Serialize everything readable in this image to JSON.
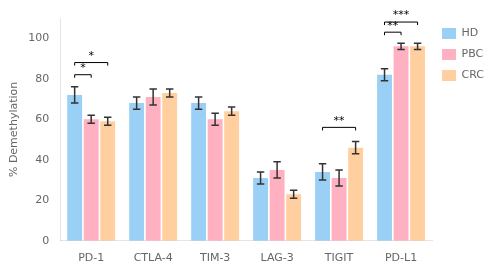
{
  "chart_data": {
    "type": "bar",
    "ylabel": "% Demethylation",
    "categories": [
      "PD-1",
      "CTLA-4",
      "TIM-3",
      "LAG-3",
      "TIGIT",
      "PD-L1"
    ],
    "series": [
      {
        "name": "HD",
        "values": [
          72,
          68,
          68,
          31,
          34,
          82
        ],
        "errors": [
          4,
          3,
          3,
          3,
          4,
          3
        ]
      },
      {
        "name": "PBC",
        "values": [
          60,
          71,
          60,
          35,
          31,
          96
        ],
        "errors": [
          2,
          4,
          3,
          4,
          4,
          1.5
        ]
      },
      {
        "name": "CRC",
        "values": [
          59,
          73,
          64,
          23,
          46,
          96
        ],
        "errors": [
          2,
          2,
          2,
          2,
          3,
          1.5
        ]
      }
    ],
    "ylim": [
      0,
      110
    ],
    "yticks": [
      0,
      20,
      40,
      60,
      80,
      100
    ],
    "grid": false,
    "legend": "upper right",
    "annotations": [
      {
        "category": "PD-1",
        "from": "HD",
        "to": "PBC",
        "y": 82,
        "label": "*"
      },
      {
        "category": "PD-1",
        "from": "HD",
        "to": "CRC",
        "y": 88,
        "label": "*"
      },
      {
        "category": "TIGIT",
        "from": "HD",
        "to": "CRC",
        "y": 56,
        "label": "**"
      },
      {
        "category": "PD-L1",
        "from": "HD",
        "to": "PBC",
        "y": 103,
        "label": "**"
      },
      {
        "category": "PD-L1",
        "from": "HD",
        "to": "CRC",
        "y": 108,
        "label": "***"
      }
    ]
  }
}
